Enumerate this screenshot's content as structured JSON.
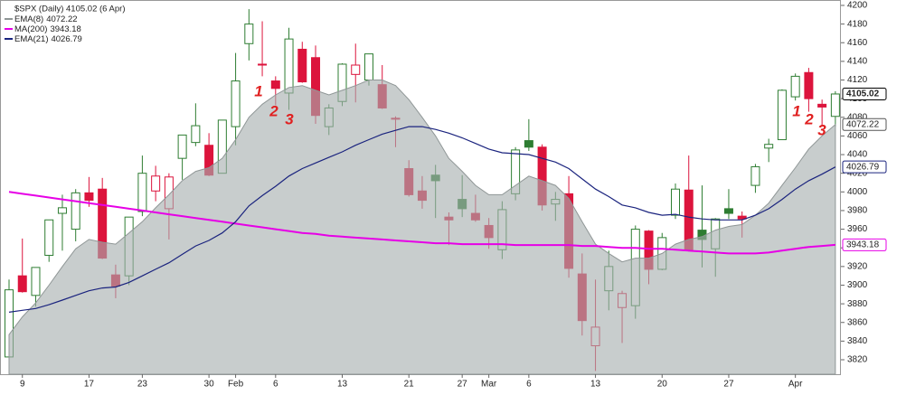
{
  "chart_data": {
    "type": "candlestick",
    "title": "$SPX (Daily) 4105.02 (6 Apr)",
    "last_close": 4105.02,
    "categories": [
      null,
      "9",
      null,
      null,
      null,
      null,
      "17",
      null,
      null,
      null,
      "23",
      null,
      null,
      null,
      null,
      "30",
      null,
      "Feb",
      null,
      null,
      "6",
      null,
      null,
      null,
      null,
      "13",
      null,
      null,
      null,
      null,
      "21",
      null,
      null,
      null,
      "27",
      null,
      "Mar",
      null,
      null,
      "6",
      null,
      null,
      null,
      null,
      "13",
      null,
      null,
      null,
      null,
      "20",
      null,
      null,
      null,
      null,
      "27",
      null,
      null,
      null,
      null,
      "Apr",
      null,
      null,
      null
    ],
    "open": [
      3823,
      3910,
      3889,
      3932,
      3977,
      3960,
      3999,
      4003,
      3911,
      3910,
      3979,
      4001,
      3982,
      4036,
      4053,
      4050,
      4020,
      4070,
      4159,
      4137,
      4119,
      4106,
      4153,
      4144,
      4070,
      4097,
      4126,
      4120,
      4115,
      4078,
      4025,
      4001,
      4018,
      3973,
      3992,
      3977,
      3964,
      3938,
      3998,
      4055,
      4048,
      3987,
      3998,
      3912,
      3835,
      3894,
      3876,
      3878,
      3958,
      3917,
      3975,
      4002,
      3959,
      3939,
      3982,
      3974,
      4007,
      4047,
      4056,
      4102,
      4128,
      4094,
      4081
    ],
    "high": [
      3906,
      3950,
      3919,
      3970,
      3997,
      4003,
      4016,
      4015,
      3922,
      3973,
      4039,
      4028,
      4020,
      4061,
      4095,
      4063,
      4077,
      4149,
      4196,
      4183,
      4124,
      4176,
      4161,
      4157,
      4094,
      4138,
      4159,
      4148,
      4136,
      4081,
      4034,
      4017,
      4029,
      3978,
      4018,
      3997,
      3972,
      3990,
      4048,
      4078,
      4051,
      4000,
      4017,
      3934,
      3906,
      3937,
      3894,
      3964,
      3959,
      3956,
      4009,
      4039,
      4007,
      3972,
      4003,
      3979,
      4030,
      4057,
      4110,
      4127,
      4133,
      4099,
      4108
    ],
    "low": [
      3809,
      3892,
      3877,
      3925,
      3937,
      3947,
      3984,
      3928,
      3886,
      3900,
      3974,
      3990,
      3949,
      4013,
      4049,
      4017,
      4020,
      4050,
      4141,
      4124,
      4093,
      4088,
      4117,
      4073,
      4061,
      4092,
      4096,
      4114,
      4089,
      4048,
      3995,
      3982,
      3972,
      3943,
      3973,
      3968,
      3939,
      3928,
      3991,
      4044,
      3980,
      3969,
      3908,
      3846,
      3808,
      3873,
      3838,
      3864,
      3901,
      3916,
      3971,
      3936,
      3919,
      3909,
      3971,
      3951,
      3999,
      4032,
      4056,
      4098,
      4086,
      4072,
      4070
    ],
    "close": [
      3895,
      3893,
      3919,
      3970,
      3983,
      3999,
      3991,
      3929,
      3899,
      3973,
      4020,
      4017,
      4016,
      4061,
      4071,
      4018,
      4077,
      4119,
      4180,
      4136,
      4111,
      4164,
      4118,
      4082,
      4090,
      4137,
      4136,
      4148,
      4090,
      4079,
      3997,
      3991,
      4012,
      3970,
      3982,
      3970,
      3951,
      3981,
      4045,
      4048,
      3986,
      3992,
      3918,
      3862,
      3855,
      3920,
      3891,
      3960,
      3917,
      3951,
      4003,
      3937,
      3949,
      3971,
      3977,
      3971,
      4027,
      4051,
      4109,
      4124,
      4100,
      4091,
      4105.02
    ],
    "up_color": "#2e7d32",
    "down_color": "#dc143c",
    "series": [
      {
        "name": "EMA(8)",
        "last_value": 4072.22,
        "color": "#8f9696",
        "area": true,
        "values": [
          3847,
          3866,
          3881,
          3900,
          3920,
          3939,
          3949,
          3946,
          3944,
          3956,
          3968,
          3983,
          3997,
          4012,
          4022,
          4026,
          4036,
          4056,
          4080,
          4094,
          4104,
          4112,
          4114,
          4109,
          4104,
          4109,
          4114,
          4120,
          4120,
          4114,
          4099,
          4080,
          4060,
          4036,
          4022,
          4007,
          3997,
          3997,
          4007,
          4017,
          4012,
          4007,
          3993,
          3968,
          3944,
          3934,
          3925,
          3929,
          3929,
          3934,
          3944,
          3949,
          3952,
          3959,
          3963,
          3965,
          3975,
          3988,
          4007,
          4026,
          4046,
          4060,
          4072.22
        ]
      },
      {
        "name": "MA(200)",
        "last_value": 3943.18,
        "color": "#e600e6",
        "values": [
          4000,
          3998,
          3996,
          3994,
          3992,
          3990,
          3988,
          3986,
          3984,
          3982,
          3980,
          3978,
          3976,
          3974,
          3972,
          3970,
          3968,
          3966,
          3964,
          3962,
          3960,
          3958,
          3956,
          3955,
          3953,
          3952,
          3951,
          3950,
          3949,
          3948,
          3947,
          3946,
          3945,
          3945,
          3944,
          3944,
          3944,
          3944,
          3943,
          3943,
          3943,
          3943,
          3943,
          3942,
          3942,
          3941,
          3940,
          3940,
          3939,
          3939,
          3938,
          3937,
          3936,
          3935,
          3934,
          3934,
          3934,
          3935,
          3937,
          3939,
          3941,
          3942,
          3943.18
        ]
      },
      {
        "name": "EMA(21)",
        "last_value": 4026.79,
        "color": "#1a237e",
        "values": [
          3871,
          3873,
          3875,
          3879,
          3884,
          3889,
          3894,
          3897,
          3898,
          3903,
          3910,
          3917,
          3924,
          3933,
          3942,
          3948,
          3956,
          3968,
          3985,
          3996,
          4006,
          4017,
          4025,
          4031,
          4037,
          4043,
          4050,
          4056,
          4062,
          4066,
          4070,
          4070,
          4067,
          4063,
          4058,
          4052,
          4046,
          4042,
          4041,
          4040,
          4036,
          4032,
          4025,
          4014,
          4003,
          3995,
          3986,
          3983,
          3978,
          3975,
          3976,
          3973,
          3971,
          3970,
          3970,
          3970,
          3975,
          3982,
          3992,
          4003,
          4012,
          4019,
          4026.79
        ]
      }
    ],
    "annotations": [
      "1",
      "2",
      "3",
      "1",
      "2",
      "3"
    ],
    "ylim": [
      3804.5,
      4205.8
    ],
    "yticks": [
      3820,
      3840,
      3860,
      3880,
      3900,
      3920,
      3940,
      3960,
      3980,
      4000,
      4020,
      4040,
      4060,
      4080,
      4100,
      4120,
      4140,
      4160,
      4180,
      4200
    ]
  }
}
